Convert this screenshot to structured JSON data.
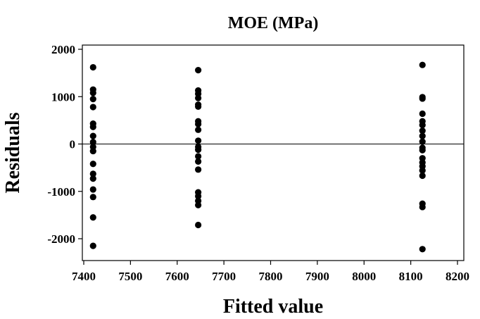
{
  "chart_data": {
    "type": "scatter",
    "title": "MOE (MPa)",
    "xlabel": "Fitted value",
    "ylabel": "Residuals",
    "xlim": [
      7400,
      8200
    ],
    "ylim": [
      -2500,
      2100
    ],
    "xticks": [
      7400,
      7500,
      7600,
      7700,
      7800,
      7900,
      8000,
      8100,
      8200
    ],
    "yticks": [
      -2000,
      -1000,
      0,
      1000,
      2000
    ],
    "reference_line_y": 0,
    "grid": false,
    "series": [
      {
        "marker_color": "#000000",
        "points": [
          {
            "x": 7420,
            "y": 1620
          },
          {
            "x": 7420,
            "y": 1150
          },
          {
            "x": 7420,
            "y": 1080
          },
          {
            "x": 7420,
            "y": 950
          },
          {
            "x": 7420,
            "y": 780
          },
          {
            "x": 7420,
            "y": 430
          },
          {
            "x": 7420,
            "y": 360
          },
          {
            "x": 7420,
            "y": 170
          },
          {
            "x": 7420,
            "y": 40
          },
          {
            "x": 7420,
            "y": -60
          },
          {
            "x": 7420,
            "y": -150
          },
          {
            "x": 7420,
            "y": -420
          },
          {
            "x": 7420,
            "y": -630
          },
          {
            "x": 7420,
            "y": -730
          },
          {
            "x": 7420,
            "y": -960
          },
          {
            "x": 7420,
            "y": -1120
          },
          {
            "x": 7420,
            "y": -1550
          },
          {
            "x": 7420,
            "y": -2150
          },
          {
            "x": 7645,
            "y": 1560
          },
          {
            "x": 7645,
            "y": 1130
          },
          {
            "x": 7645,
            "y": 1060
          },
          {
            "x": 7645,
            "y": 970
          },
          {
            "x": 7645,
            "y": 830
          },
          {
            "x": 7645,
            "y": 790
          },
          {
            "x": 7645,
            "y": 480
          },
          {
            "x": 7645,
            "y": 420
          },
          {
            "x": 7645,
            "y": 300
          },
          {
            "x": 7645,
            "y": 70
          },
          {
            "x": 7645,
            "y": -60
          },
          {
            "x": 7645,
            "y": -120
          },
          {
            "x": 7645,
            "y": -260
          },
          {
            "x": 7645,
            "y": -370
          },
          {
            "x": 7645,
            "y": -540
          },
          {
            "x": 7645,
            "y": -1020
          },
          {
            "x": 7645,
            "y": -1100
          },
          {
            "x": 7645,
            "y": -1200
          },
          {
            "x": 7645,
            "y": -1290
          },
          {
            "x": 7645,
            "y": -1710
          },
          {
            "x": 8125,
            "y": 1670
          },
          {
            "x": 8125,
            "y": 990
          },
          {
            "x": 8125,
            "y": 960
          },
          {
            "x": 8125,
            "y": 640
          },
          {
            "x": 8125,
            "y": 480
          },
          {
            "x": 8125,
            "y": 400
          },
          {
            "x": 8125,
            "y": 280
          },
          {
            "x": 8125,
            "y": 170
          },
          {
            "x": 8125,
            "y": 50
          },
          {
            "x": 8125,
            "y": -80
          },
          {
            "x": 8125,
            "y": -130
          },
          {
            "x": 8125,
            "y": -300
          },
          {
            "x": 8125,
            "y": -390
          },
          {
            "x": 8125,
            "y": -470
          },
          {
            "x": 8125,
            "y": -560
          },
          {
            "x": 8125,
            "y": -670
          },
          {
            "x": 8125,
            "y": -1260
          },
          {
            "x": 8125,
            "y": -1330
          },
          {
            "x": 8125,
            "y": -2220
          }
        ]
      }
    ]
  }
}
